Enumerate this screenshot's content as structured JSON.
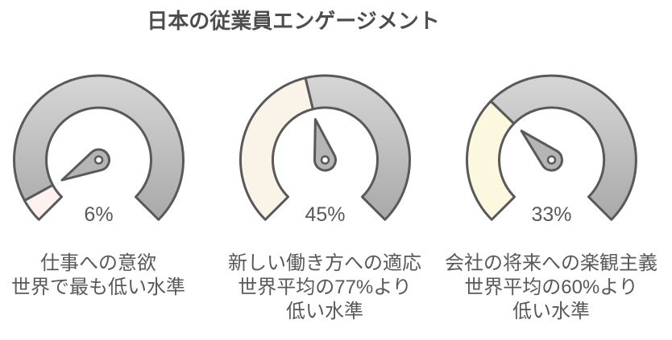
{
  "title": {
    "text": "日本の従業員エンゲージメント",
    "color": "#4d4d4d"
  },
  "chart_data": {
    "type": "gauge",
    "title": "日本の従業員エンゲージメント",
    "gauge_range": [
      0,
      100
    ],
    "start_angle_degrees": 225,
    "sweep_degrees": 270,
    "track_color_top": "#d6d6d6",
    "track_color_bottom": "#a8a8a8",
    "stroke_color": "#595959",
    "needle_color": "#b5b5b5",
    "value_text_color": "#595959",
    "caption_color": "#595959",
    "gauges": [
      {
        "value": 6,
        "value_label": "6%",
        "fill_color": "#fdf2ef",
        "caption_lines": [
          "仕事への意欲",
          "世界で最も低い水準"
        ]
      },
      {
        "value": 45,
        "value_label": "45%",
        "fill_color": "#faf3e8",
        "caption_lines": [
          "新しい働き方への適応",
          "世界平均の77%より",
          "低い水準"
        ]
      },
      {
        "value": 33,
        "value_label": "33%",
        "fill_color": "#fbf8df",
        "caption_lines": [
          "会社の将来への楽観主義",
          "世界平均の60%より",
          "低い水準"
        ]
      }
    ]
  }
}
